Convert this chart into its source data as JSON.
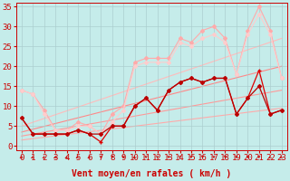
{
  "background_color": "#c5ecea",
  "grid_color": "#aacccc",
  "xlabel": "Vent moyen/en rafales ( km/h )",
  "xlabel_color": "#cc0000",
  "xlabel_fontsize": 7,
  "tick_color": "#cc0000",
  "tick_fontsize": 6.5,
  "xlim": [
    -0.5,
    23.5
  ],
  "ylim": [
    -1,
    36
  ],
  "yticks": [
    0,
    5,
    10,
    15,
    20,
    25,
    30,
    35
  ],
  "xticks": [
    0,
    1,
    2,
    3,
    4,
    5,
    6,
    7,
    8,
    9,
    10,
    11,
    12,
    13,
    14,
    15,
    16,
    17,
    18,
    19,
    20,
    21,
    22,
    23
  ],
  "series": [
    {
      "x": [
        0,
        23
      ],
      "y": [
        1.5,
        9.5
      ],
      "color": "#ffaaaa",
      "lw": 0.8,
      "marker": null,
      "markersize": 0,
      "zorder": 1,
      "linestyle": "-"
    },
    {
      "x": [
        0,
        23
      ],
      "y": [
        2.5,
        14.0
      ],
      "color": "#ff9999",
      "lw": 0.8,
      "marker": null,
      "markersize": 0,
      "zorder": 1,
      "linestyle": "-"
    },
    {
      "x": [
        0,
        23
      ],
      "y": [
        3.5,
        20.0
      ],
      "color": "#ff8888",
      "lw": 0.8,
      "marker": null,
      "markersize": 0,
      "zorder": 1,
      "linestyle": "-"
    },
    {
      "x": [
        0,
        23
      ],
      "y": [
        5.0,
        27.0
      ],
      "color": "#ffbbbb",
      "lw": 0.8,
      "marker": null,
      "markersize": 0,
      "zorder": 1,
      "linestyle": "-"
    },
    {
      "x": [
        0,
        1,
        2,
        3,
        4,
        5,
        6,
        7,
        8,
        9,
        10,
        11,
        12,
        13,
        14,
        15,
        16,
        17,
        18,
        19,
        20,
        21,
        22,
        23
      ],
      "y": [
        14,
        13,
        9,
        4,
        4,
        6,
        5,
        3,
        8,
        10,
        21,
        22,
        22,
        22,
        27,
        26,
        29,
        30,
        27,
        18,
        29,
        35,
        29,
        17
      ],
      "color": "#ffaaaa",
      "lw": 0.8,
      "marker": "D",
      "markersize": 2,
      "zorder": 2,
      "linestyle": "-"
    },
    {
      "x": [
        0,
        1,
        2,
        3,
        4,
        5,
        6,
        7,
        8,
        9,
        10,
        11,
        12,
        13,
        14,
        15,
        16,
        17,
        18,
        19,
        20,
        21,
        22,
        23
      ],
      "y": [
        14,
        13,
        8,
        4,
        4,
        5,
        5,
        3,
        6,
        9,
        20,
        21,
        21,
        21,
        26,
        25,
        27,
        28,
        26,
        18,
        28,
        33,
        28,
        17
      ],
      "color": "#ffcccc",
      "lw": 0.8,
      "marker": "D",
      "markersize": 2,
      "zorder": 2,
      "linestyle": "-"
    },
    {
      "x": [
        0,
        1,
        2,
        3,
        4,
        5,
        6,
        7,
        8,
        9,
        10,
        11,
        12,
        13,
        14,
        15,
        16,
        17,
        18,
        19,
        20,
        21,
        22,
        23
      ],
      "y": [
        7,
        3,
        3,
        3,
        3,
        4,
        3,
        1,
        5,
        5,
        10,
        12,
        9,
        14,
        16,
        17,
        16,
        17,
        17,
        8,
        12,
        19,
        8,
        9
      ],
      "color": "#dd0000",
      "lw": 0.9,
      "marker": "+",
      "markersize": 3,
      "zorder": 4,
      "linestyle": "-"
    },
    {
      "x": [
        0,
        1,
        2,
        3,
        4,
        5,
        6,
        7,
        8,
        9,
        10,
        11,
        12,
        13,
        14,
        15,
        16,
        17,
        18,
        19,
        20,
        21,
        22,
        23
      ],
      "y": [
        7,
        3,
        3,
        3,
        3,
        4,
        3,
        3,
        5,
        5,
        10,
        12,
        9,
        14,
        16,
        17,
        16,
        17,
        17,
        8,
        12,
        15,
        8,
        9
      ],
      "color": "#bb0000",
      "lw": 0.9,
      "marker": "D",
      "markersize": 2,
      "zorder": 5,
      "linestyle": "-"
    }
  ],
  "arrows": {
    "color": "#cc0000",
    "y_data": -2.8,
    "angles_deg": [
      225,
      225,
      225,
      225,
      225,
      210,
      225,
      270,
      270,
      270,
      225,
      270,
      270,
      270,
      270,
      270,
      270,
      270,
      270,
      270,
      270,
      270,
      225,
      225
    ]
  }
}
